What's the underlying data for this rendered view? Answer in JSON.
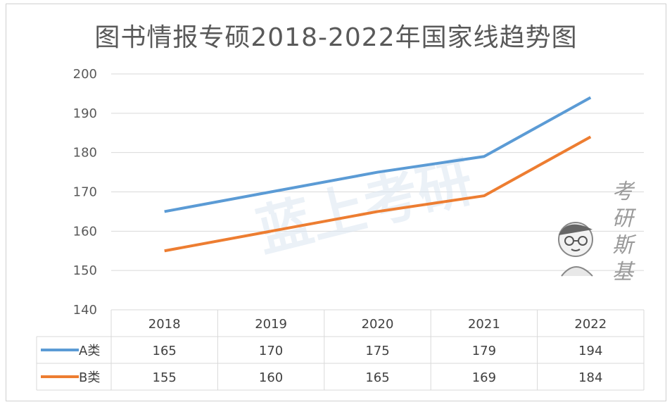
{
  "chart_data": {
    "type": "line",
    "title": "图书情报专硕2018-2022年国家线趋势图",
    "categories": [
      "2018",
      "2019",
      "2020",
      "2021",
      "2022"
    ],
    "series": [
      {
        "name": "A类",
        "values": [
          165,
          170,
          175,
          179,
          194
        ],
        "color": "#5b9bd5"
      },
      {
        "name": "B类",
        "values": [
          155,
          160,
          165,
          169,
          184
        ],
        "color": "#ed7d31"
      }
    ],
    "ylim": [
      140,
      200
    ],
    "yticks": [
      140,
      150,
      160,
      170,
      180,
      190,
      200
    ],
    "grid": true,
    "legend": "data-table"
  },
  "watermark": {
    "center_text": "蓝上考研",
    "side_text": [
      "考",
      "研",
      "斯",
      "基"
    ],
    "icon": "cartoon-student-mascot"
  },
  "colors": {
    "grid": "#d9d9d9",
    "text": "#595959"
  }
}
